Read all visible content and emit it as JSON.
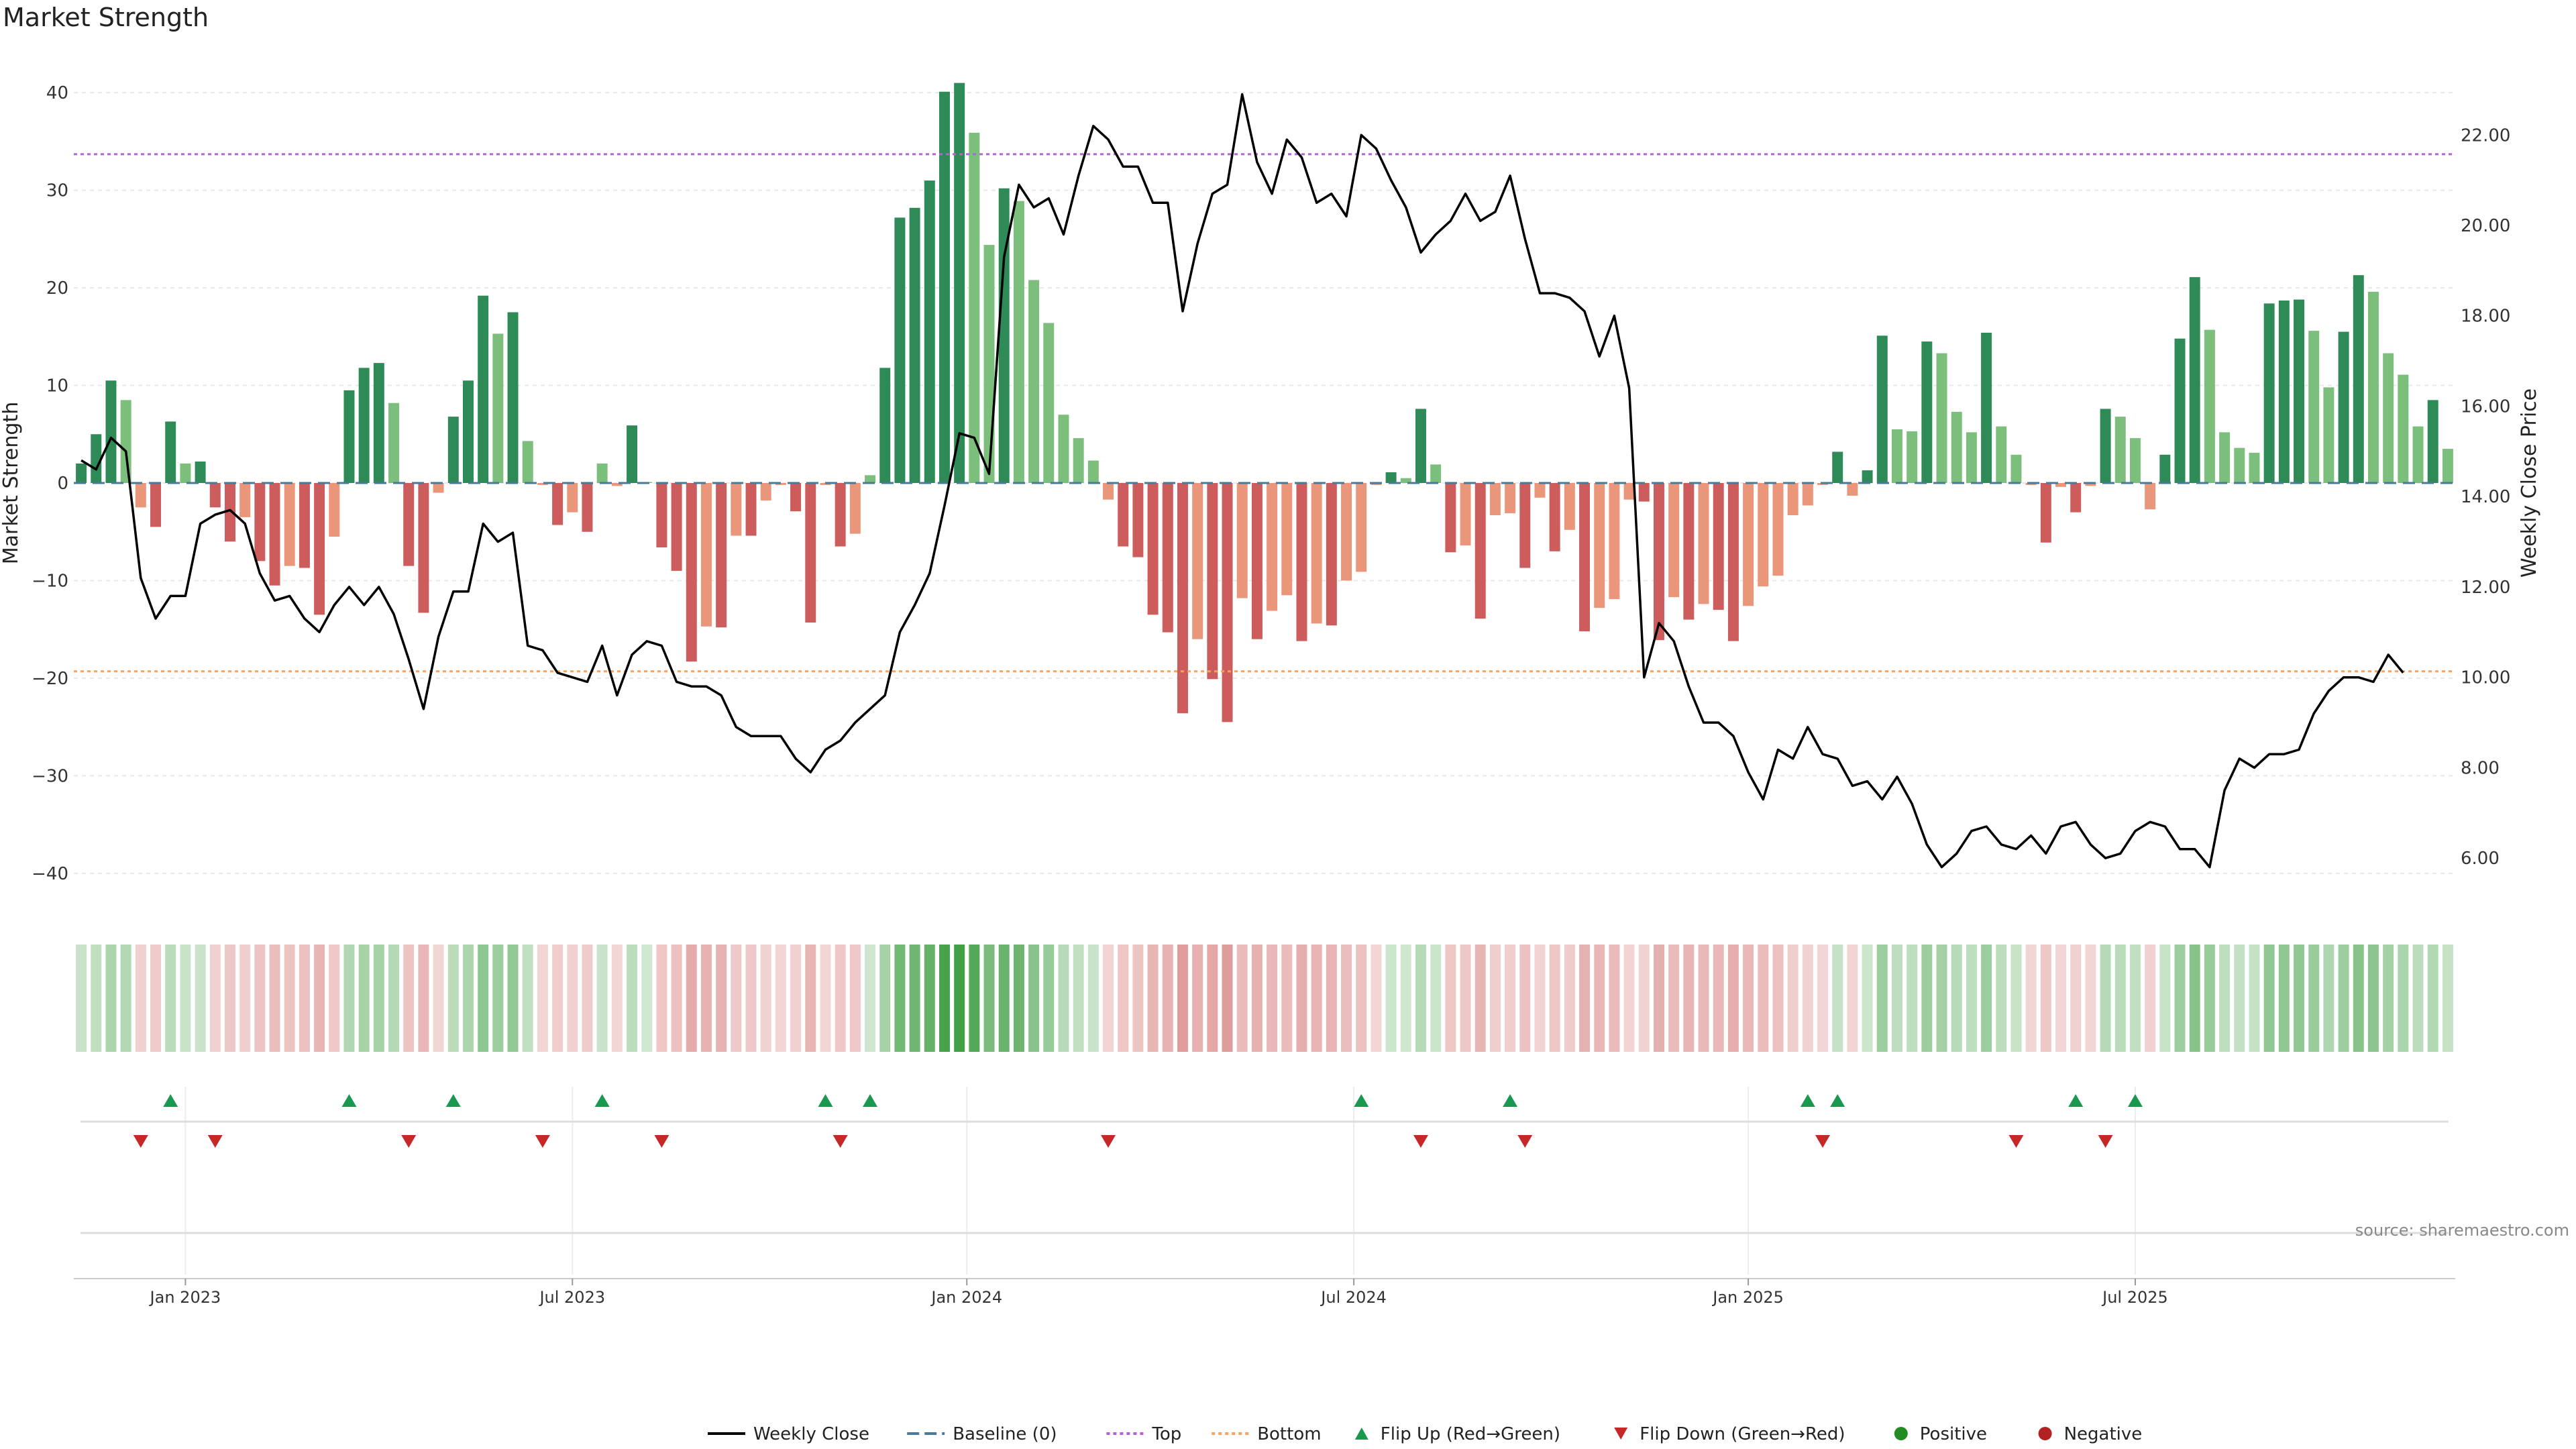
{
  "title": "Market Strength",
  "source": "source: sharemaestro.com",
  "colors": {
    "bar_pos_dark": "#2e8b57",
    "bar_pos_light": "#7cbf7c",
    "bar_neg_dark": "#cd5c5c",
    "bar_neg_light": "#e9967a",
    "price_line": "#000000",
    "baseline": "#4a7a9a",
    "top": "#b264d6",
    "bottom": "#f4a460",
    "flip_up": "#1a9850",
    "flip_down": "#c62828",
    "positive": "#228b22",
    "negative": "#b22222"
  },
  "chart_data": {
    "type": "bar",
    "ylabel": "Market Strength",
    "y2label": "Weekly Close Price",
    "ylim": [
      -44,
      44
    ],
    "y2lim": [
      4.8,
      23.8
    ],
    "yticks": [
      -40,
      -30,
      -20,
      -10,
      0,
      10,
      20,
      30,
      40
    ],
    "y2ticks": [
      "6.00",
      "8.00",
      "10.00",
      "12.00",
      "14.00",
      "16.00",
      "18.00",
      "20.00",
      "22.00"
    ],
    "xticks": [
      {
        "label": "Jan 2023",
        "index": 7.5
      },
      {
        "label": "Jul 2023",
        "index": 33.5
      },
      {
        "label": "Jan 2024",
        "index": 60
      },
      {
        "label": "Jul 2024",
        "index": 86
      },
      {
        "label": "Jan 2025",
        "index": 112.5
      },
      {
        "label": "Jul 2025",
        "index": 138.5
      }
    ],
    "top_level": 33.7,
    "bottom_level": -19.3,
    "strength": [
      2,
      5,
      10.5,
      8.5,
      -2.5,
      -4.5,
      6.3,
      2,
      2.2,
      -2.5,
      -6,
      -3.5,
      -8,
      -10.5,
      -8.5,
      -8.7,
      -13.5,
      -5.5,
      9.5,
      11.8,
      12.3,
      8.2,
      -8.5,
      -13.3,
      -1,
      6.8,
      10.5,
      19.2,
      15.3,
      17.5,
      4.3,
      -0.2,
      -4.3,
      -3,
      -5,
      2,
      -0.3,
      5.9,
      0.1,
      -6.6,
      -9,
      -18.3,
      -14.7,
      -14.8,
      -5.4,
      -5.4,
      -1.8,
      -0.2,
      -2.9,
      -14.3,
      -0.2,
      -6.5,
      -5.2,
      0.8,
      11.8,
      27.2,
      28.2,
      31,
      40.1,
      41,
      35.9,
      24.4,
      30.2,
      28.9,
      20.8,
      16.4,
      7,
      4.6,
      2.3,
      -1.7,
      -6.5,
      -7.6,
      -13.5,
      -15.3,
      -23.6,
      -16,
      -20.1,
      -24.5,
      -11.8,
      -16,
      -13.1,
      -11.5,
      -16.2,
      -14.4,
      -14.6,
      -10,
      -9.1,
      -0.2,
      1.1,
      0.5,
      7.6,
      1.9,
      -7.1,
      -6.4,
      -13.9,
      -3.3,
      -3.1,
      -8.7,
      -1.5,
      -7,
      -4.8,
      -15.2,
      -12.8,
      -11.9,
      -1.7,
      -1.9,
      -16.1,
      -11.7,
      -14,
      -12.4,
      -13,
      -16.2,
      -12.6,
      -10.6,
      -9.5,
      -3.3,
      -2.3,
      -0.2,
      3.2,
      -1.3,
      1.3,
      15.1,
      5.5,
      5.3,
      14.5,
      13.3,
      7.3,
      5.2,
      15.4,
      5.8,
      2.9,
      -0.2,
      -6.1,
      -0.4,
      -3,
      -0.3,
      7.6,
      6.8,
      4.6,
      -2.7,
      2.9,
      14.8,
      21.1,
      15.7,
      5.2,
      3.6,
      3.1,
      18.4,
      18.7,
      18.8,
      15.6,
      9.8,
      15.5,
      21.3,
      19.6,
      13.3,
      11.1,
      5.8,
      8.5,
      3.5
    ],
    "price": [
      14.8,
      14.6,
      15.3,
      15,
      12.2,
      11.3,
      11.8,
      11.8,
      13.4,
      13.6,
      13.7,
      13.4,
      12.3,
      11.7,
      11.8,
      11.3,
      11,
      11.6,
      12,
      11.6,
      12,
      11.4,
      10.4,
      9.3,
      10.9,
      11.9,
      11.9,
      13.4,
      13,
      13.2,
      10.7,
      10.6,
      10.1,
      10,
      9.9,
      10.7,
      9.6,
      10.5,
      10.8,
      10.7,
      9.9,
      9.8,
      9.8,
      9.6,
      8.9,
      8.7,
      8.7,
      8.7,
      8.2,
      7.9,
      8.4,
      8.6,
      9,
      9.3,
      9.6,
      11,
      11.6,
      12.3,
      13.8,
      15.4,
      15.3,
      14.5,
      19.3,
      20.9,
      20.4,
      20.6,
      19.8,
      21.1,
      22.2,
      21.9,
      21.3,
      21.3,
      20.5,
      20.5,
      18.1,
      19.6,
      20.7,
      20.9,
      22.9,
      21.4,
      20.7,
      21.9,
      21.5,
      20.5,
      20.7,
      20.2,
      22,
      21.7,
      21,
      20.4,
      19.4,
      19.8,
      20.1,
      20.7,
      20.1,
      20.3,
      21.1,
      19.7,
      18.5,
      18.5,
      18.4,
      18.1,
      17.1,
      18,
      16.4,
      10,
      11.2,
      10.8,
      9.8,
      9,
      9,
      8.7,
      7.9,
      7.3,
      8.4,
      8.2,
      8.9,
      8.3,
      8.2,
      7.6,
      7.7,
      7.3,
      7.8,
      7.2,
      6.3,
      5.8,
      6.1,
      6.6,
      6.7,
      6.3,
      6.2,
      6.5,
      6.1,
      6.7,
      6.8,
      6.3,
      6,
      6.1,
      6.6,
      6.8,
      6.7,
      6.2,
      6.2,
      5.8,
      7.5,
      8.2,
      8,
      8.3,
      8.3,
      8.4,
      9.2,
      9.7,
      10,
      10,
      9.9,
      10.5,
      10.1
    ],
    "heat_strip": [
      2,
      5,
      10.5,
      8.5,
      -2.5,
      -4.5,
      6.3,
      2,
      2.2,
      -2.5,
      -6,
      -3.5,
      -8,
      -10.5,
      -8.5,
      -8.7,
      -13.5,
      -5.5,
      9.5,
      11.8,
      12.3,
      8.2,
      -8.5,
      -13.3,
      -1,
      6.8,
      10.5,
      19.2,
      15.3,
      17.5,
      4.3,
      -0.2,
      -4.3,
      -3,
      -5,
      2,
      -0.3,
      5.9,
      0.1,
      -6.6,
      -9,
      -18.3,
      -14.7,
      -14.8,
      -5.4,
      -5.4,
      -1.8,
      -0.2,
      -2.9,
      -14.3,
      -0.2,
      -6.5,
      -5.2,
      0.8,
      11.8,
      27.2,
      28.2,
      31,
      40.1,
      41,
      35.9,
      24.4,
      30.2,
      28.9,
      20.8,
      16.4,
      7,
      4.6,
      2.3,
      -1.7,
      -6.5,
      -7.6,
      -13.5,
      -15.3,
      -23.6,
      -16,
      -20.1,
      -24.5,
      -11.8,
      -16,
      -13.1,
      -11.5,
      -16.2,
      -14.4,
      -14.6,
      -10,
      -9.1,
      -0.2,
      1.1,
      0.5,
      7.6,
      1.9,
      -7.1,
      -6.4,
      -13.9,
      -3.3,
      -3.1,
      -8.7,
      -1.5,
      -7,
      -4.8,
      -15.2,
      -12.8,
      -11.9,
      -1.7,
      -1.9,
      -16.1,
      -11.7,
      -14,
      -12.4,
      -13,
      -16.2,
      -12.6,
      -10.6,
      -9.5,
      -3.3,
      -2.3,
      -0.2,
      3.2,
      -1.3,
      1.3,
      15.1,
      5.5,
      5.3,
      14.5,
      13.3,
      7.3,
      5.2,
      15.4,
      5.8,
      2.9,
      -0.2,
      -6.1,
      -0.4,
      -3,
      -0.3,
      7.6,
      6.8,
      4.6,
      -2.7,
      2.9,
      14.8,
      21.1,
      15.7,
      5.2,
      3.6,
      3.1,
      18.4,
      18.7,
      18.8,
      15.6,
      9.8,
      15.5,
      21.3,
      19.6,
      13.3,
      11.1,
      5.8,
      8.5,
      3.5
    ],
    "flip_up": [
      6,
      18,
      25,
      35,
      50,
      53,
      86,
      96,
      116,
      118,
      134,
      138
    ],
    "flip_down": [
      4,
      9,
      22,
      31,
      39,
      51,
      69,
      90,
      97,
      117,
      130,
      136
    ],
    "legend": [
      "Weekly Close",
      "Baseline (0)",
      "Top",
      "Bottom",
      "Flip Up (Red→Green)",
      "Flip Down (Green→Red)",
      "Positive",
      "Negative"
    ],
    "legend_placement": "bottom-center"
  }
}
